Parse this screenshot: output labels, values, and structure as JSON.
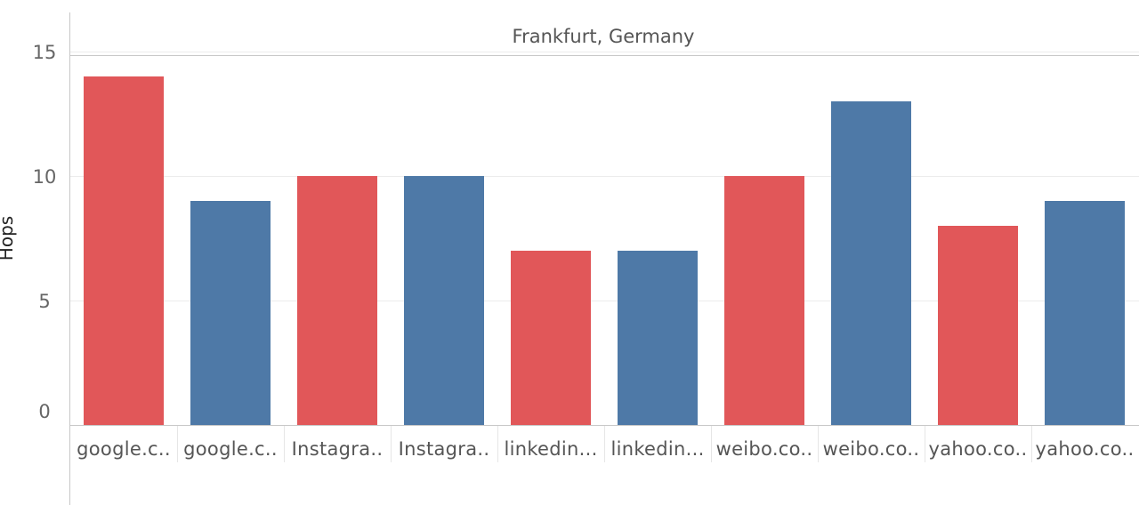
{
  "chart_data": {
    "type": "bar",
    "title": "Frankfurt, Germany",
    "ylabel": "Hops",
    "xlabel": "",
    "ylim": [
      0,
      16
    ],
    "yticks": [
      "0",
      "5",
      "10",
      "15"
    ],
    "grid": true,
    "categories": [
      "google.c..",
      "google.c..",
      "Instagra..",
      "Instagra..",
      "linkedin...",
      "linkedin...",
      "weibo.co..",
      "weibo.co..",
      "yahoo.co..",
      "yahoo.co.."
    ],
    "values": [
      14,
      9,
      10,
      10,
      7,
      7,
      10,
      13,
      8,
      9
    ],
    "colors": [
      "#e15759",
      "#4e79a7",
      "#e15759",
      "#4e79a7",
      "#e15759",
      "#4e79a7",
      "#e15759",
      "#4e79a7",
      "#e15759",
      "#4e79a7"
    ]
  }
}
